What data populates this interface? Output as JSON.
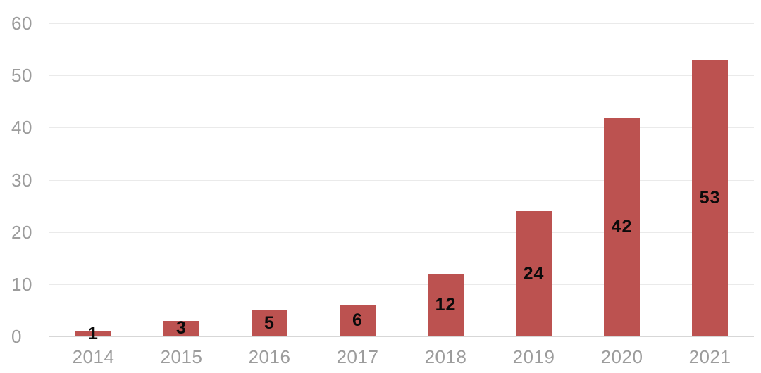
{
  "chart_data": {
    "type": "bar",
    "title": "",
    "xlabel": "",
    "ylabel": "",
    "categories": [
      "2014",
      "2015",
      "2016",
      "2017",
      "2018",
      "2019",
      "2020",
      "2021"
    ],
    "values": [
      1,
      3,
      5,
      6,
      12,
      24,
      42,
      53
    ],
    "data_labels": [
      "1",
      "3",
      "5",
      "6",
      "12",
      "24",
      "42",
      "53"
    ],
    "ylim": [
      0,
      60
    ],
    "yticks": [
      0,
      10,
      20,
      30,
      40,
      50,
      60
    ],
    "grid": true,
    "legend": false,
    "colors": {
      "bar": "#bc5250",
      "gridline": "#eaeaea",
      "baseline": "#d7d7d7",
      "axis_text": "#9c9c9c",
      "value_label": "#0b0b0b",
      "background": "#ffffff"
    }
  }
}
